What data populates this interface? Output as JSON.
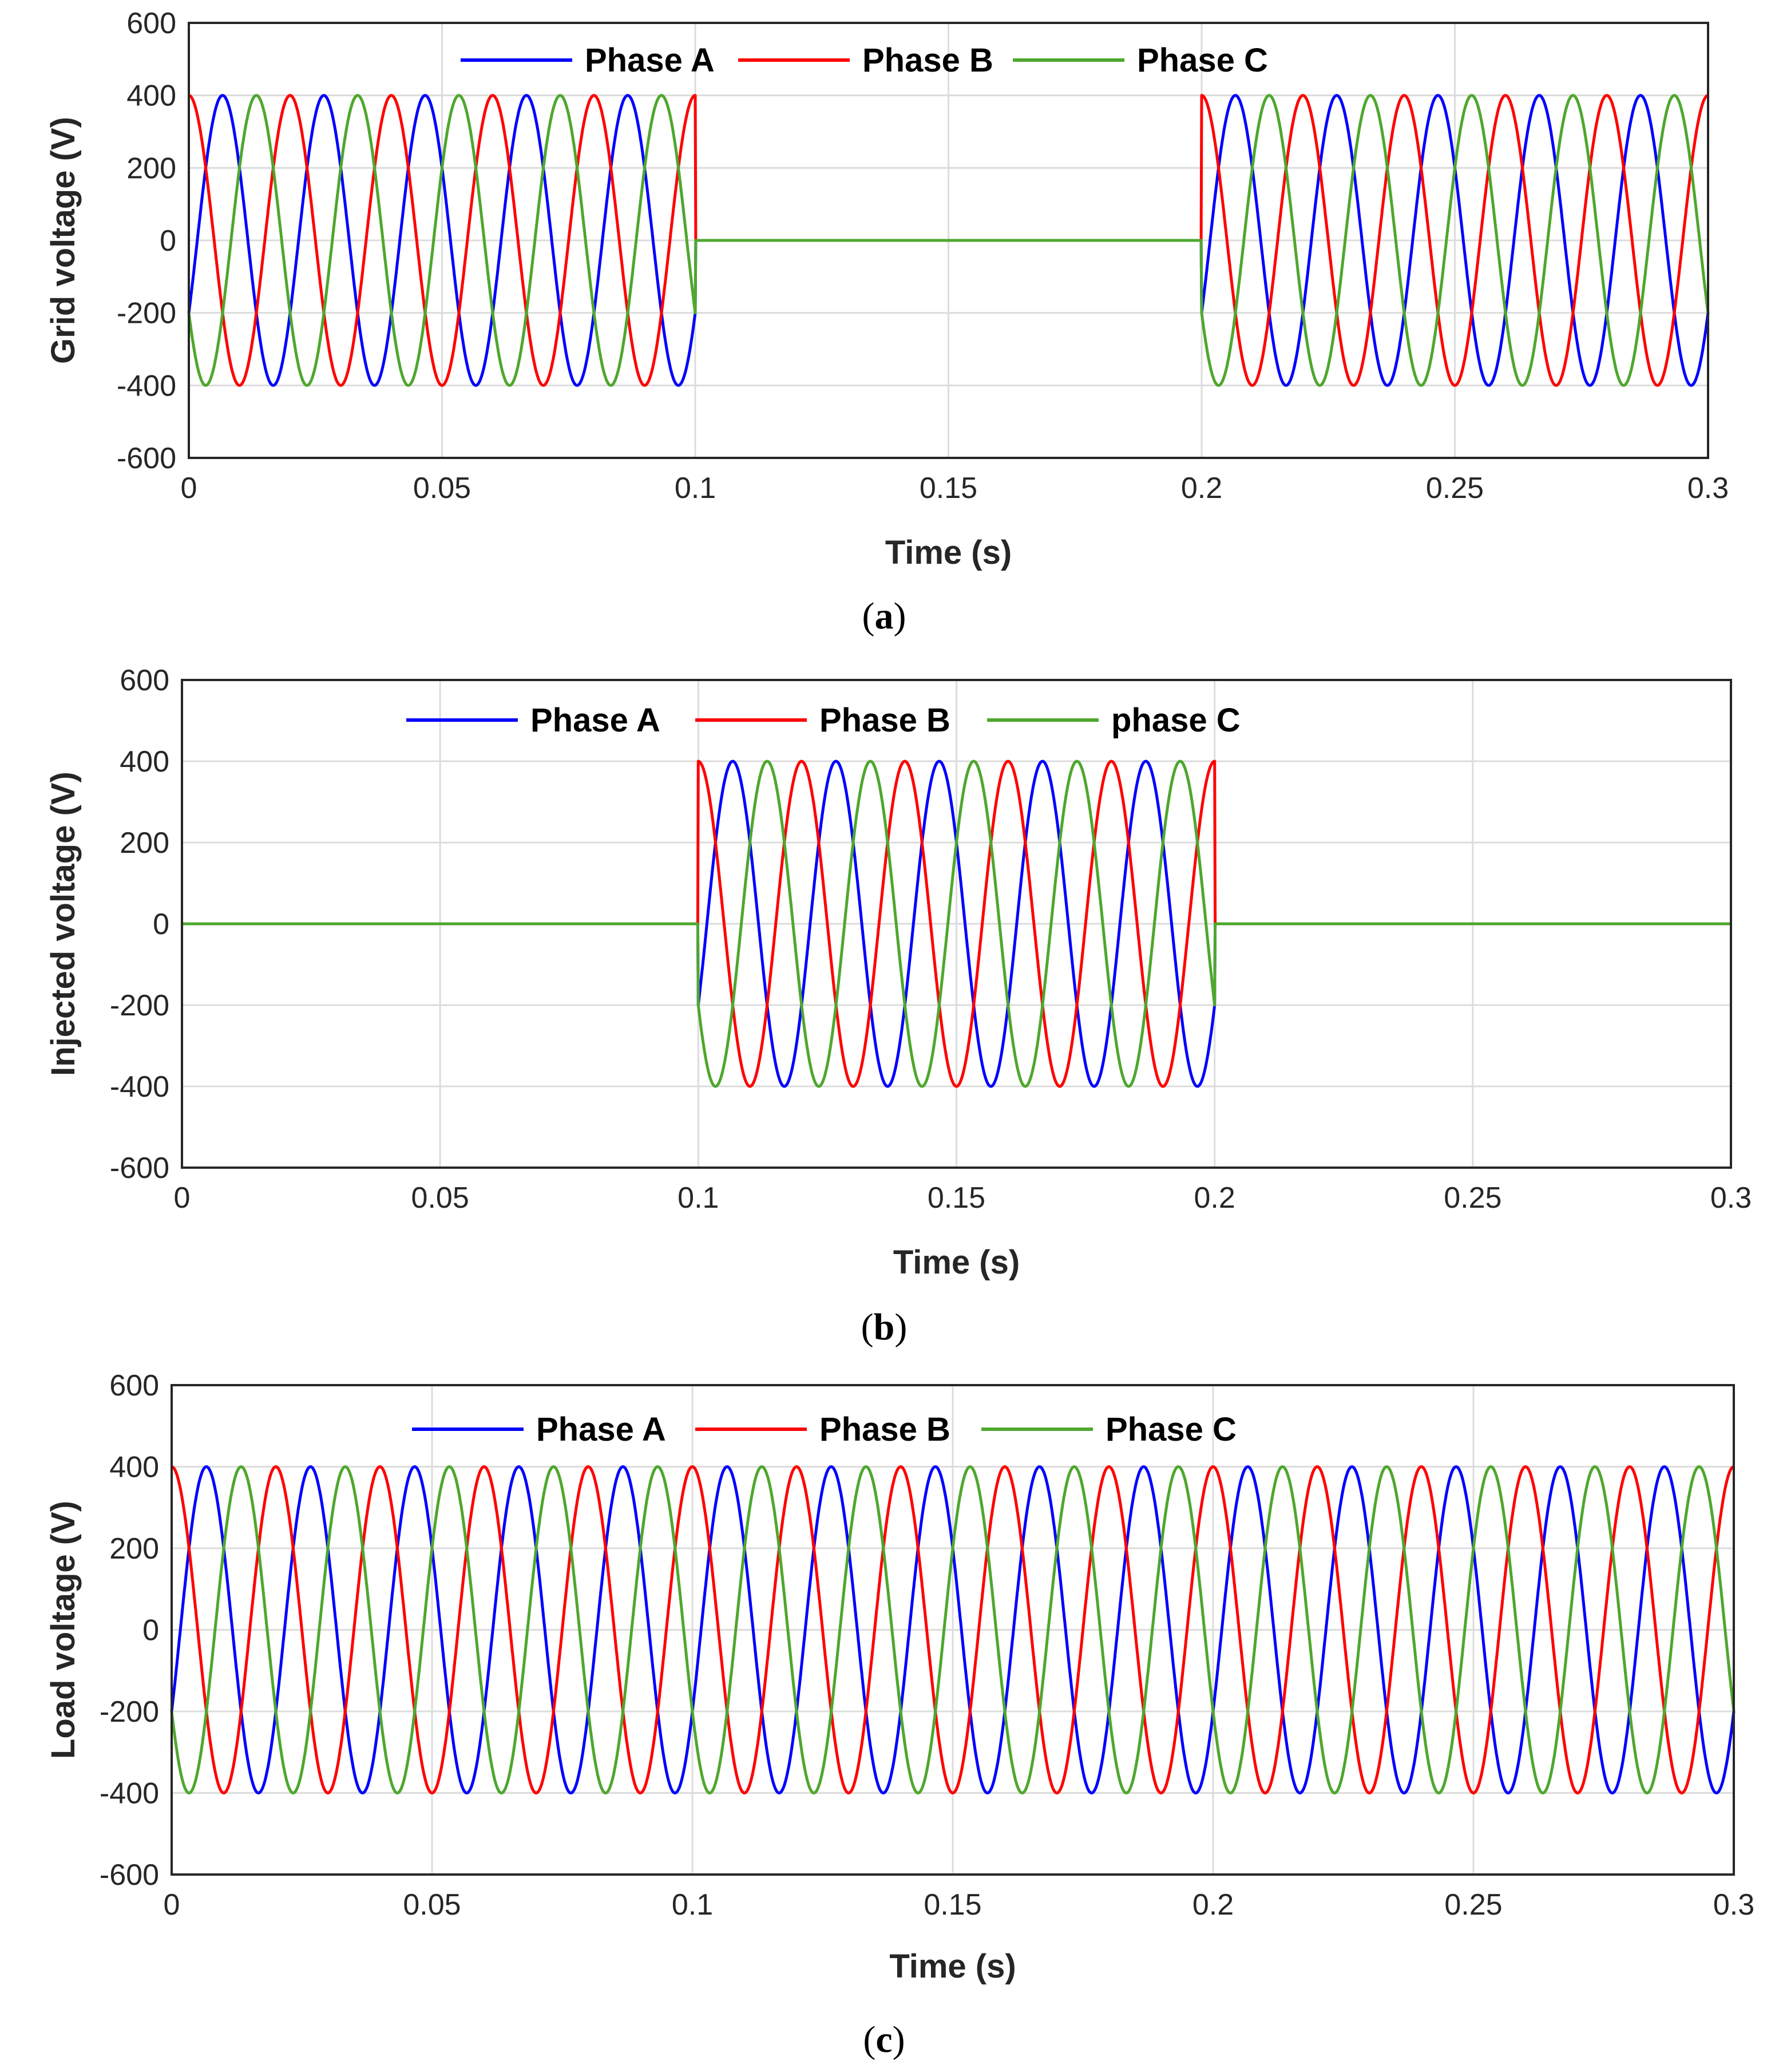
{
  "chart_data": [
    {
      "panel": "a",
      "type": "line",
      "caption_letter": "a",
      "xlabel": "Time (s)",
      "ylabel": "Grid voltage (V)",
      "xlim": [
        0,
        0.3
      ],
      "ylim": [
        -600,
        600
      ],
      "xticks": [
        "0",
        "0.05",
        "0.1",
        "0.15",
        "0.2",
        "0.25",
        "0.3"
      ],
      "yticks": [
        "600",
        "400",
        "200",
        "0",
        "-200",
        "-400",
        "-600"
      ],
      "grid": true,
      "legend_position": "top",
      "amplitude_v": 400,
      "frequency_hz": 50,
      "description_of_signal": "three-phase sine, zero between 0.1 s and 0.2 s",
      "zero_interval_s": [
        0.1,
        0.2
      ],
      "series": [
        {
          "name": "Phase A",
          "color": "#0000ff",
          "phase_deg": -30
        },
        {
          "name": "Phase B",
          "color": "#ff0000",
          "phase_deg": 90
        },
        {
          "name": "Phase C",
          "color": "#4ea72e",
          "phase_deg": 210
        }
      ]
    },
    {
      "panel": "b",
      "type": "line",
      "caption_letter": "b",
      "xlabel": "Time (s)",
      "ylabel": "Injected voltage (V)",
      "xlim": [
        0,
        0.3
      ],
      "ylim": [
        -600,
        600
      ],
      "xticks": [
        "0",
        "0.05",
        "0.1",
        "0.15",
        "0.2",
        "0.25",
        "0.3"
      ],
      "yticks": [
        "600",
        "400",
        "200",
        "0",
        "-200",
        "-400",
        "-600"
      ],
      "grid": true,
      "legend_position": "top",
      "amplitude_v": 400,
      "frequency_hz": 50,
      "active_interval_s": [
        0.1,
        0.2
      ],
      "series": [
        {
          "name": "Phase A",
          "color": "#0000ff",
          "phase_deg": -30
        },
        {
          "name": "Phase B",
          "color": "#ff0000",
          "phase_deg": 90
        },
        {
          "name": "phase C",
          "color": "#4ea72e",
          "phase_deg": 210
        }
      ]
    },
    {
      "panel": "c",
      "type": "line",
      "caption_letter": "c",
      "xlabel": "Time (s)",
      "ylabel": "Load voltage (V)",
      "xlim": [
        0,
        0.3
      ],
      "ylim": [
        -600,
        600
      ],
      "xticks": [
        "0",
        "0.05",
        "0.1",
        "0.15",
        "0.2",
        "0.25",
        "0.3"
      ],
      "yticks": [
        "600",
        "400",
        "200",
        "0",
        "-200",
        "-400",
        "-600"
      ],
      "grid": true,
      "legend_position": "top",
      "amplitude_v": 400,
      "frequency_hz": 50,
      "series": [
        {
          "name": "Phase A",
          "color": "#0000ff",
          "phase_deg": -30
        },
        {
          "name": "Phase B",
          "color": "#ff0000",
          "phase_deg": 90
        },
        {
          "name": "Phase C",
          "color": "#4ea72e",
          "phase_deg": 210
        }
      ]
    }
  ]
}
